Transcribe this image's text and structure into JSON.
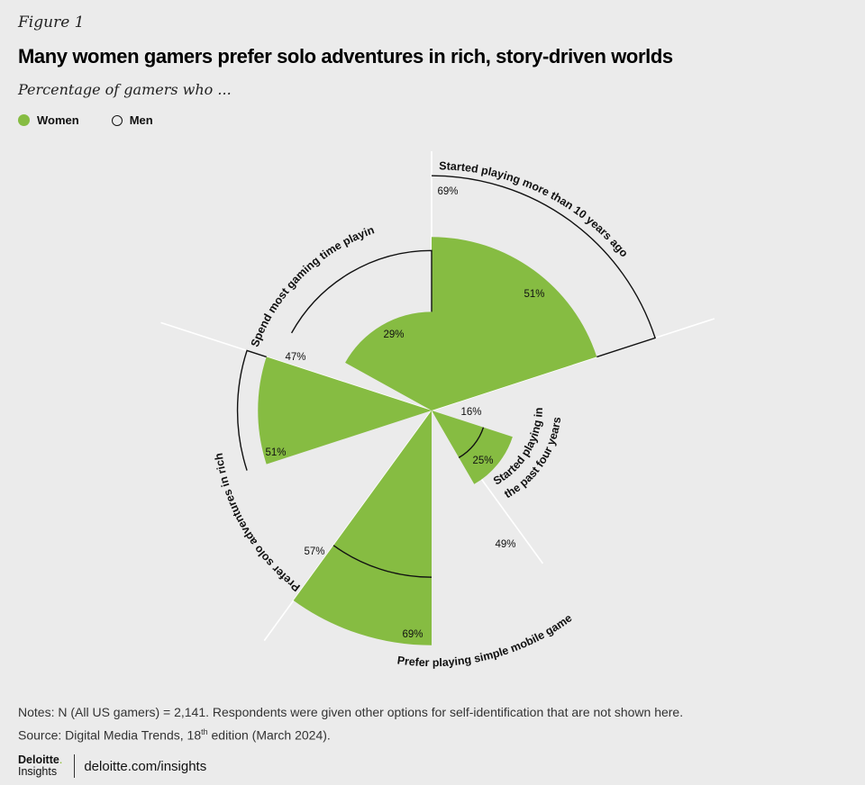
{
  "figure_label": "Figure 1",
  "title": "Many women gamers prefer solo adventures in rich, story-driven worlds",
  "subtitle": "Percentage of gamers who ...",
  "legend": {
    "women": "Women",
    "men": "Men"
  },
  "colors": {
    "women": "#86bc42",
    "men_outline": "#111111",
    "background": "#ebebeb",
    "divider": "#ffffff"
  },
  "chart_data": {
    "type": "radial-bar",
    "series": [
      {
        "name": "Women",
        "values": [
          51,
          25,
          69,
          51,
          29
        ]
      },
      {
        "name": "Men",
        "values": [
          69,
          16,
          49,
          57,
          47
        ]
      }
    ],
    "categories": [
      "Started playing more than 10 years ago",
      "Started playing in the past four years",
      "Prefer playing simple mobile games",
      "Prefer solo adventures in rich story-driven worlds",
      "Spend most gaming time playing one or two live-service games"
    ],
    "value_labels": {
      "women": [
        "51%",
        "25%",
        "69%",
        "51%",
        "29%"
      ],
      "men": [
        "69%",
        "16%",
        "49%",
        "57%",
        "47%"
      ]
    }
  },
  "notes": {
    "line1": "Notes: N (All US gamers) = 2,141. Respondents were given other options for self-identification that are not shown here.",
    "line2_pre": "Source: Digital Media Trends, 18",
    "line2_sup": "th",
    "line2_post": " edition (March 2024)."
  },
  "footer": {
    "brand_line1": "Deloitte",
    "brand_dot": ".",
    "brand_line2": "Insights",
    "url": "deloitte.com/insights"
  }
}
